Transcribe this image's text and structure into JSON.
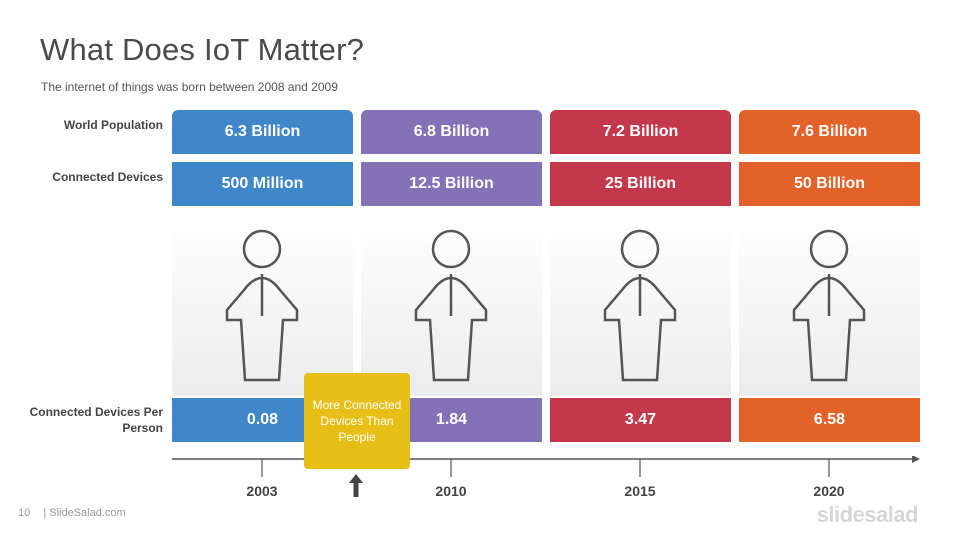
{
  "slide": {
    "title": "What Does IoT Matter?",
    "subtitle": "The internet of things was born between 2008 and 2009",
    "page_number": "10",
    "footer_text": "| SlideSalad.com",
    "logo": "slidesalad"
  },
  "row_labels": {
    "world_population": "World Population",
    "connected_devices": "Connected Devices",
    "per_person": "Connected Devices Per Person"
  },
  "columns": [
    {
      "year": "2003",
      "population": "6.3 Billion",
      "devices": "500 Million",
      "per_person": "0.08",
      "color": "#3f87c8"
    },
    {
      "year": "2010",
      "population": "6.8 Billion",
      "devices": "12.5 Billion",
      "per_person": "1.84",
      "color": "#8373b6"
    },
    {
      "year": "2015",
      "population": "7.2 Billion",
      "devices": "25 Billion",
      "per_person": "3.47",
      "color": "#c3394b"
    },
    {
      "year": "2020",
      "population": "7.6 Billion",
      "devices": "50 Billion",
      "per_person": "6.58",
      "color": "#e2622a"
    }
  ],
  "callout": {
    "text": "More Connected Devices Than People",
    "color": "#e8bf16"
  },
  "icons": [
    "person-icon",
    "arrow-up-icon",
    "timeline-arrow-icon"
  ]
}
